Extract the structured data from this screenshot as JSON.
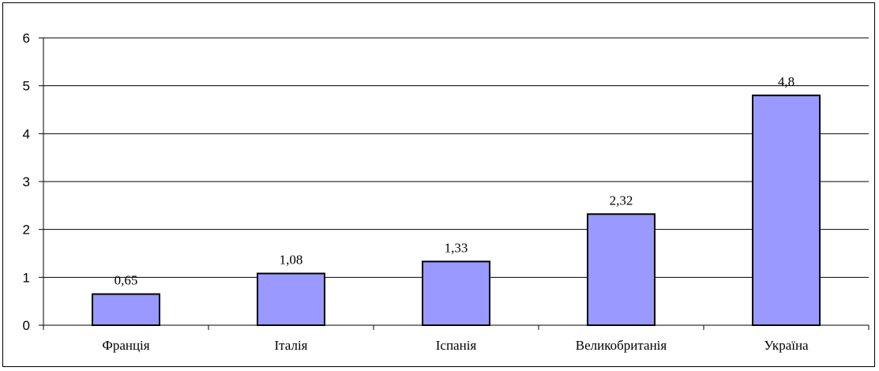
{
  "chart_data": {
    "type": "bar",
    "title": "",
    "xlabel": "",
    "ylabel": "",
    "categories": [
      "Франція",
      "Італія",
      "Іспанія",
      "Великобританія",
      "Україна"
    ],
    "values": [
      0.65,
      1.08,
      1.33,
      2.32,
      4.8
    ],
    "value_labels": [
      "0,65",
      "1,08",
      "1,33",
      "2,32",
      "4,8"
    ],
    "ylim": [
      0,
      6
    ],
    "yticks": [
      "0",
      "1",
      "2",
      "3",
      "4",
      "5",
      "6"
    ],
    "grid": true,
    "legend": "none",
    "bar_color": "#9999FF",
    "bar_edge_color": "#000000"
  }
}
